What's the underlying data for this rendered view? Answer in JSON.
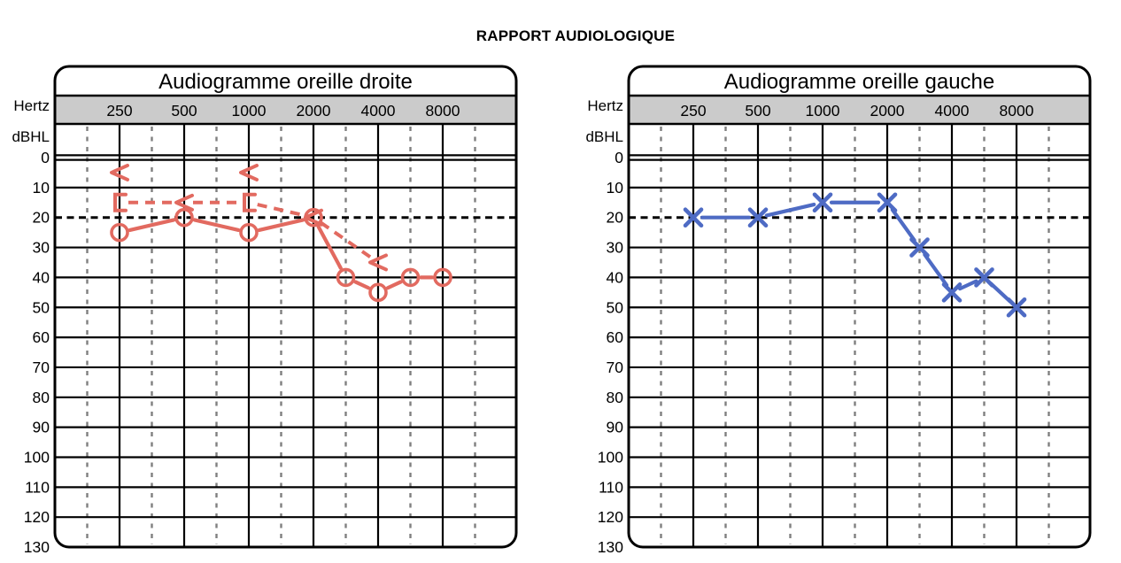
{
  "report": {
    "title": "RAPPORT AUDIOLOGIQUE"
  },
  "palette": {
    "grid_black": "#000000",
    "interoctave_dash_gray": "#7F7F7F",
    "frequency_band_gray": "#CBCBCB",
    "threshold_line_black": "#000000",
    "right_ear_red": "#E26A60",
    "left_ear_blue": "#4E6BC4"
  },
  "chart_data": [
    {
      "type": "line",
      "id": "audiogram-right-ear",
      "title": "Audiogramme oreille droite",
      "x_axis_label": "Hertz",
      "y_axis_label": "dBHL",
      "x_tick_labels": [
        "250",
        "500",
        "1000",
        "2000",
        "4000",
        "8000"
      ],
      "x_tick_freqs": [
        250,
        500,
        1000,
        2000,
        4000,
        8000
      ],
      "y_ticks": [
        0,
        10,
        20,
        30,
        40,
        50,
        60,
        70,
        80,
        90,
        100,
        110,
        120,
        130
      ],
      "ylim": [
        0,
        130
      ],
      "y_axis_inverted_downward": true,
      "threshold_line_db": 20,
      "grid": "on",
      "legend": "none",
      "color": "#E26A60",
      "series": [
        {
          "name": "o-markers-solid-line",
          "symbol": "circle",
          "line": "solid",
          "x": [
            250,
            500,
            1000,
            2000,
            3000,
            4000,
            6000,
            8000
          ],
          "y": [
            25,
            20,
            25,
            20,
            40,
            45,
            40,
            40
          ]
        },
        {
          "name": "chevron-markers-no-line",
          "symbol": "chevron-left",
          "line": "none",
          "x": [
            250,
            1000
          ],
          "y": [
            5,
            5
          ]
        },
        {
          "name": "bracket-chevron-markers-dashed-line",
          "line": "dashed",
          "x": [
            250,
            500,
            1000,
            2000,
            4000
          ],
          "y": [
            15,
            15,
            15,
            20,
            35
          ],
          "symbols": [
            "bracket-left",
            "chevron-left",
            "bracket-left",
            "chevron-left",
            "chevron-left"
          ]
        }
      ]
    },
    {
      "type": "line",
      "id": "audiogram-left-ear",
      "title": "Audiogramme oreille gauche",
      "x_axis_label": "Hertz",
      "y_axis_label": "dBHL",
      "x_tick_labels": [
        "250",
        "500",
        "1000",
        "2000",
        "4000",
        "8000"
      ],
      "x_tick_freqs": [
        250,
        500,
        1000,
        2000,
        4000,
        8000
      ],
      "y_ticks": [
        0,
        10,
        20,
        30,
        40,
        50,
        60,
        70,
        80,
        90,
        100,
        110,
        120,
        130
      ],
      "ylim": [
        0,
        130
      ],
      "y_axis_inverted_downward": true,
      "threshold_line_db": 20,
      "grid": "on",
      "legend": "none",
      "color": "#4E6BC4",
      "series": [
        {
          "name": "x-markers-solid-line",
          "symbol": "x",
          "line": "solid",
          "x": [
            250,
            500,
            1000,
            2000,
            3000,
            4000,
            6000,
            8000
          ],
          "y": [
            20,
            20,
            15,
            15,
            30,
            45,
            40,
            50
          ]
        }
      ]
    }
  ]
}
